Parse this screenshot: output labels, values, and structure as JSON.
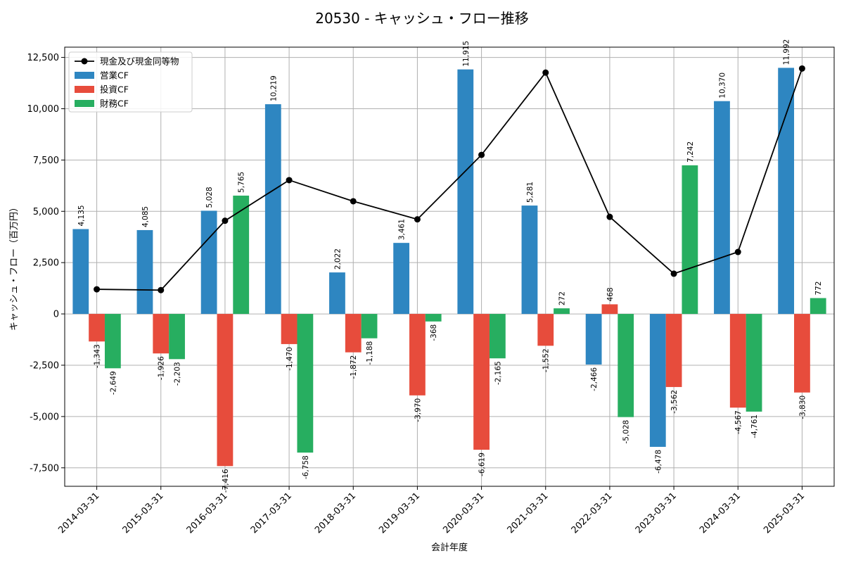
{
  "chart_data": {
    "type": "bar",
    "title": "20530 - キャッシュ・フロー推移",
    "xlabel": "会計年度",
    "ylabel": "キャッシュ・フロー（百万円）",
    "ylim": [
      -8400,
      13000
    ],
    "yticks": [
      -7500,
      -5000,
      -2500,
      0,
      2500,
      5000,
      7500,
      10000,
      12500
    ],
    "ytick_labels": [
      "-7,500",
      "-5,000",
      "-2,500",
      "0",
      "2,500",
      "5,000",
      "7,500",
      "10,000",
      "12,500"
    ],
    "grid": true,
    "legend_position": "top-left",
    "categories": [
      "2014-03-31",
      "2015-03-31",
      "2016-03-31",
      "2017-03-31",
      "2018-03-31",
      "2019-03-31",
      "2020-03-31",
      "2021-03-31",
      "2022-03-31",
      "2023-03-31",
      "2024-03-31",
      "2025-03-31"
    ],
    "series": [
      {
        "name": "営業CF",
        "kind": "bar",
        "color": "#2e86c1",
        "values": [
          4135,
          4085,
          5028,
          10219,
          2022,
          3461,
          11915,
          5281,
          -2466,
          -6478,
          10370,
          11992
        ],
        "labels": [
          "4,135",
          "4,085",
          "5,028",
          "10,219",
          "2,022",
          "3,461",
          "11,915",
          "5,281",
          "-2,466",
          "-6,478",
          "10,370",
          "11,992"
        ]
      },
      {
        "name": "投資CF",
        "kind": "bar",
        "color": "#e74c3c",
        "values": [
          -1343,
          -1926,
          -7416,
          -1470,
          -1872,
          -3970,
          -6619,
          -1552,
          468,
          -3562,
          -4567,
          -3830
        ],
        "labels": [
          "-1,343",
          "-1,926",
          "-7,416",
          "-1,470",
          "-1,872",
          "-3,970",
          "-6,619",
          "-1,552",
          "468",
          "-3,562",
          "-4,567",
          "-3,830"
        ]
      },
      {
        "name": "財務CF",
        "kind": "bar",
        "color": "#27ae60",
        "values": [
          -2649,
          -2203,
          5765,
          -6758,
          -1188,
          -368,
          -2165,
          272,
          -5028,
          7242,
          -4761,
          772
        ],
        "labels": [
          "-2,649",
          "-2,203",
          "5,765",
          "-6,758",
          "-1,188",
          "-368",
          "-2,165",
          "272",
          "-5,028",
          "7,242",
          "-4,761",
          "772"
        ]
      },
      {
        "name": "現金及び現金同等物",
        "kind": "line",
        "color": "#000000",
        "values": [
          1200,
          1160,
          4540,
          6520,
          5490,
          4610,
          7750,
          11760,
          4730,
          1960,
          3020,
          11960
        ]
      }
    ]
  }
}
